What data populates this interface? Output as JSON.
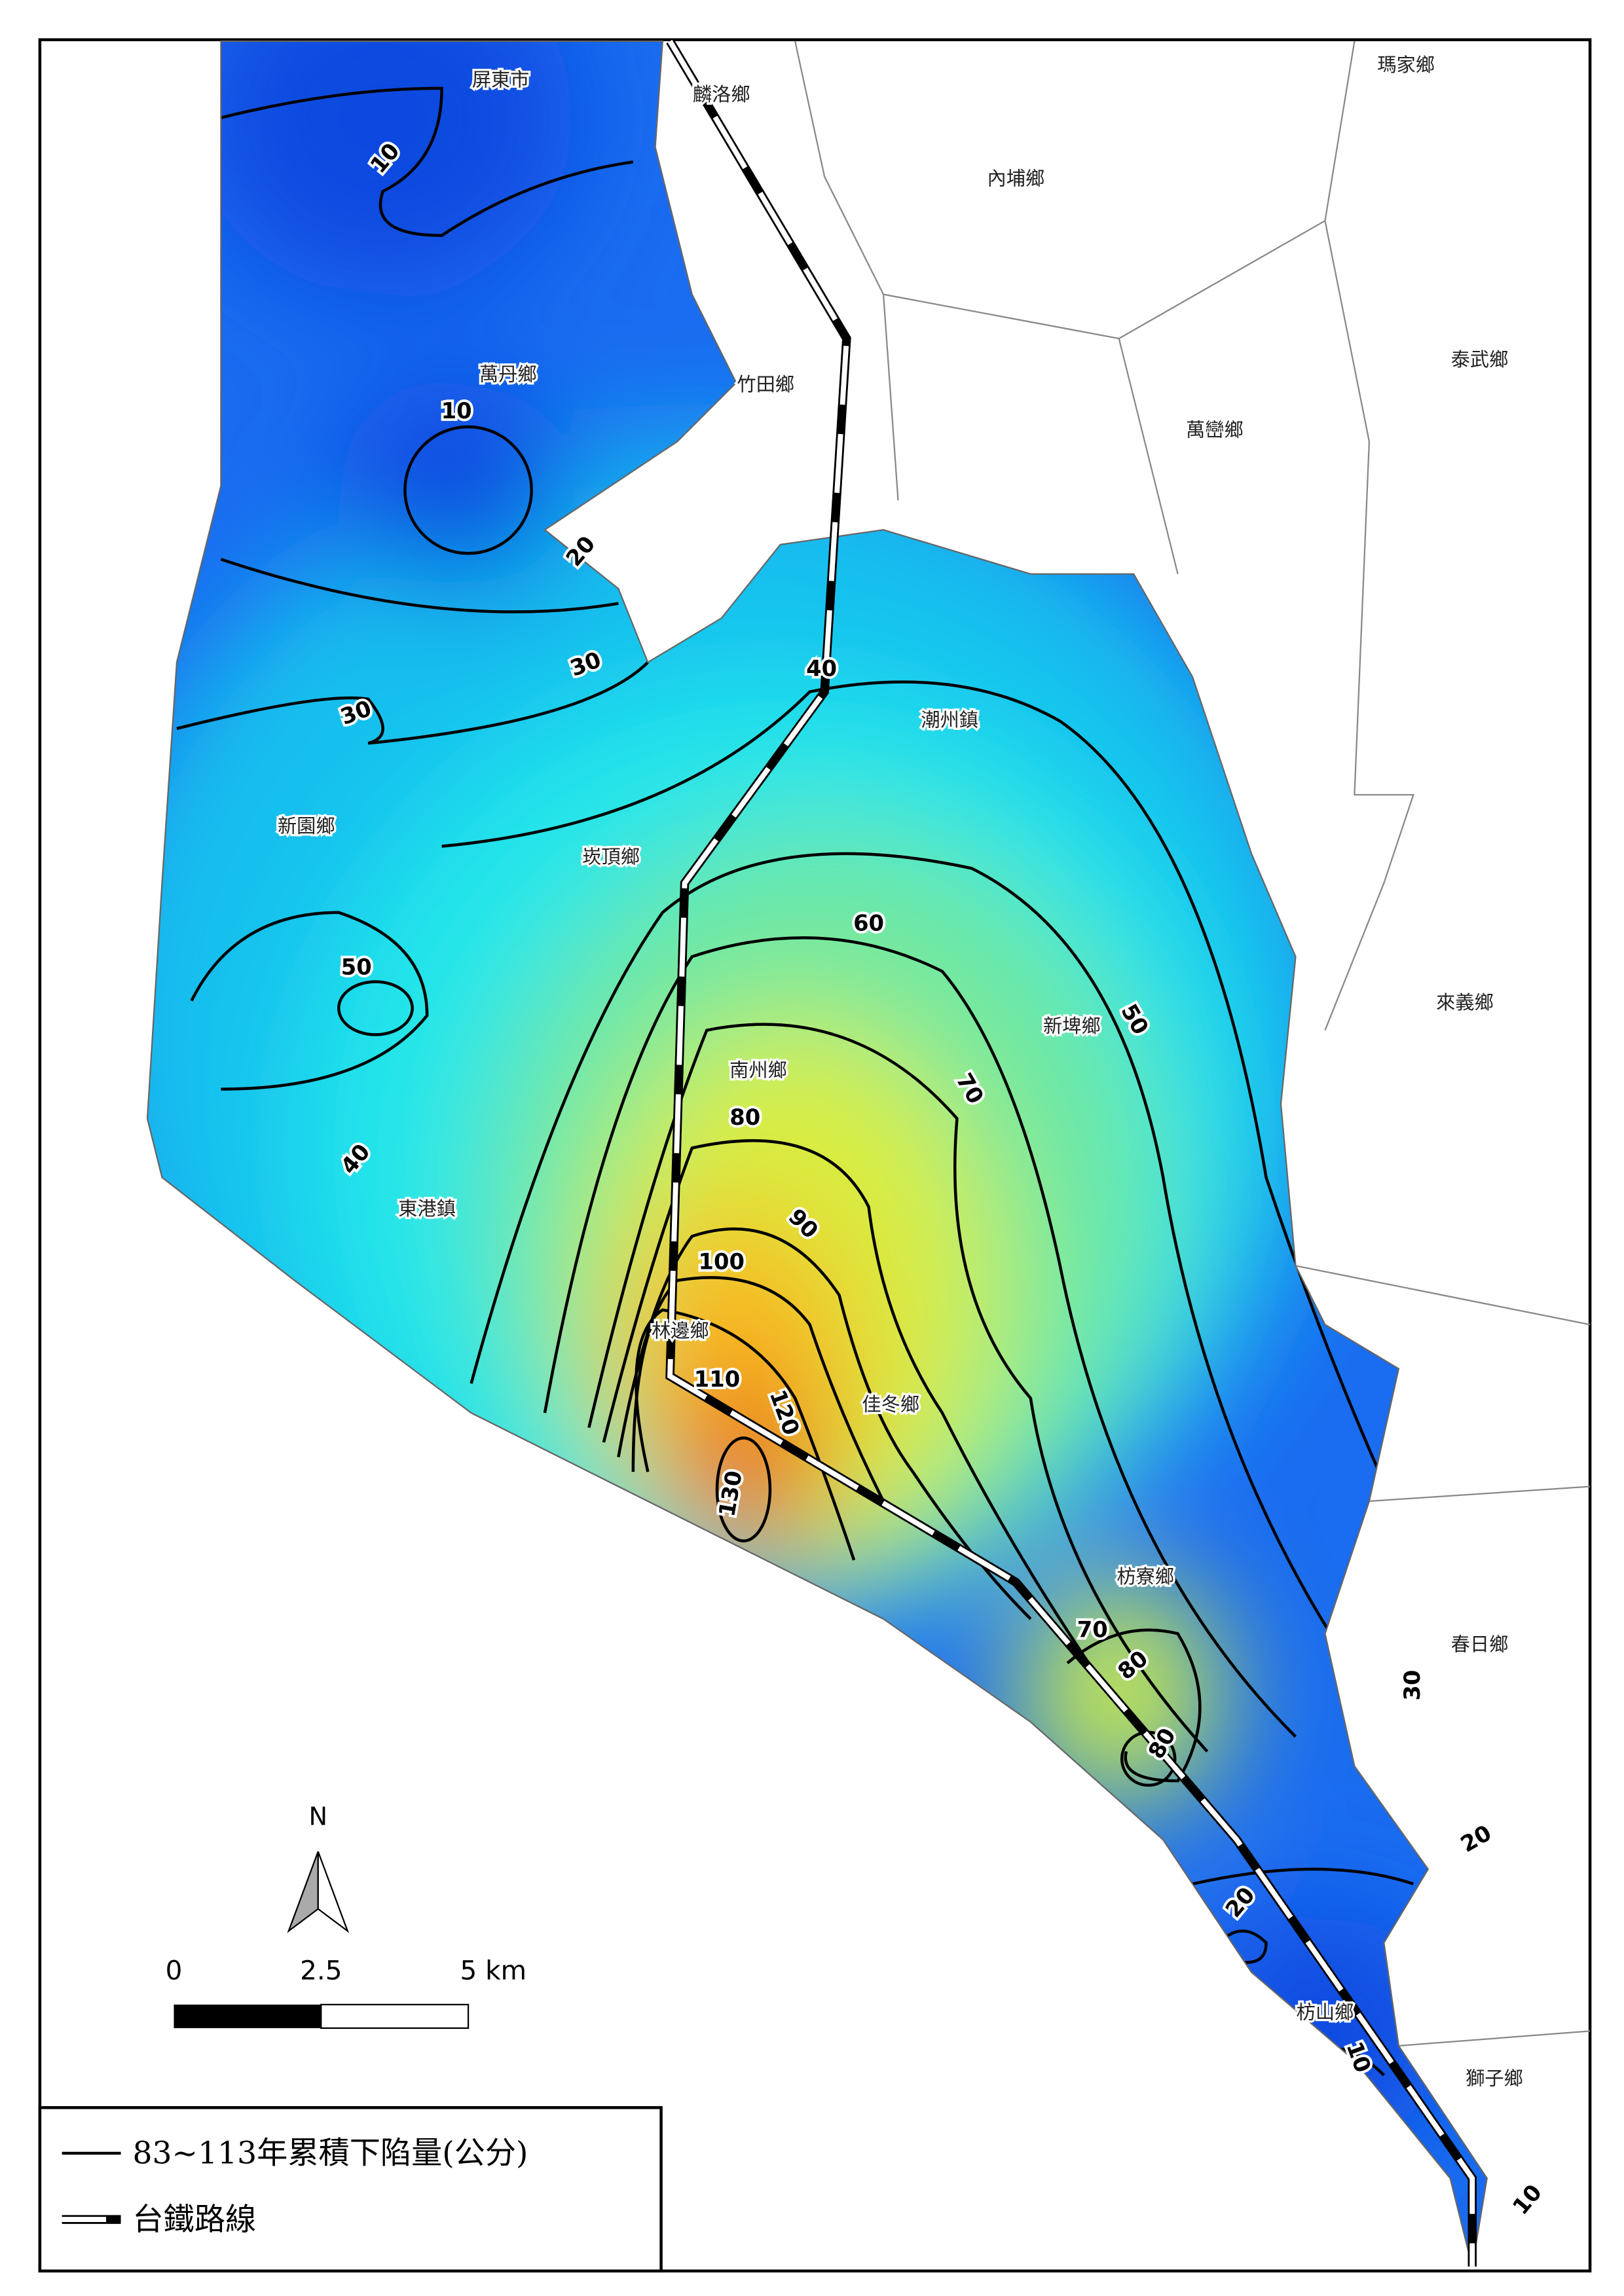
{
  "townships": [
    "屏東市",
    "麟洛鄉",
    "瑪家鄉",
    "內埔鄉",
    "萬丹鄉",
    "竹田鄉",
    "泰武鄉",
    "萬巒鄉",
    "潮州鎮",
    "新園鄉",
    "崁頂鄉",
    "來義鄉",
    "南州鄉",
    "新埤鄉",
    "東港鎮",
    "林邊鄉",
    "佳冬鄉",
    "枋寮鄉",
    "春日鄉",
    "枋山鄉",
    "獅子鄉"
  ],
  "contour_labels": [
    10,
    10,
    20,
    30,
    30,
    40,
    50,
    60,
    50,
    70,
    40,
    80,
    90,
    100,
    110,
    120,
    130,
    70,
    80,
    80,
    30,
    20,
    20,
    10,
    10
  ],
  "north": "N",
  "scale_bar": [
    "0",
    "2.5",
    "5 km"
  ],
  "legend": [
    "83~113年累積下陷量(公分)",
    "台鐵路線"
  ]
}
